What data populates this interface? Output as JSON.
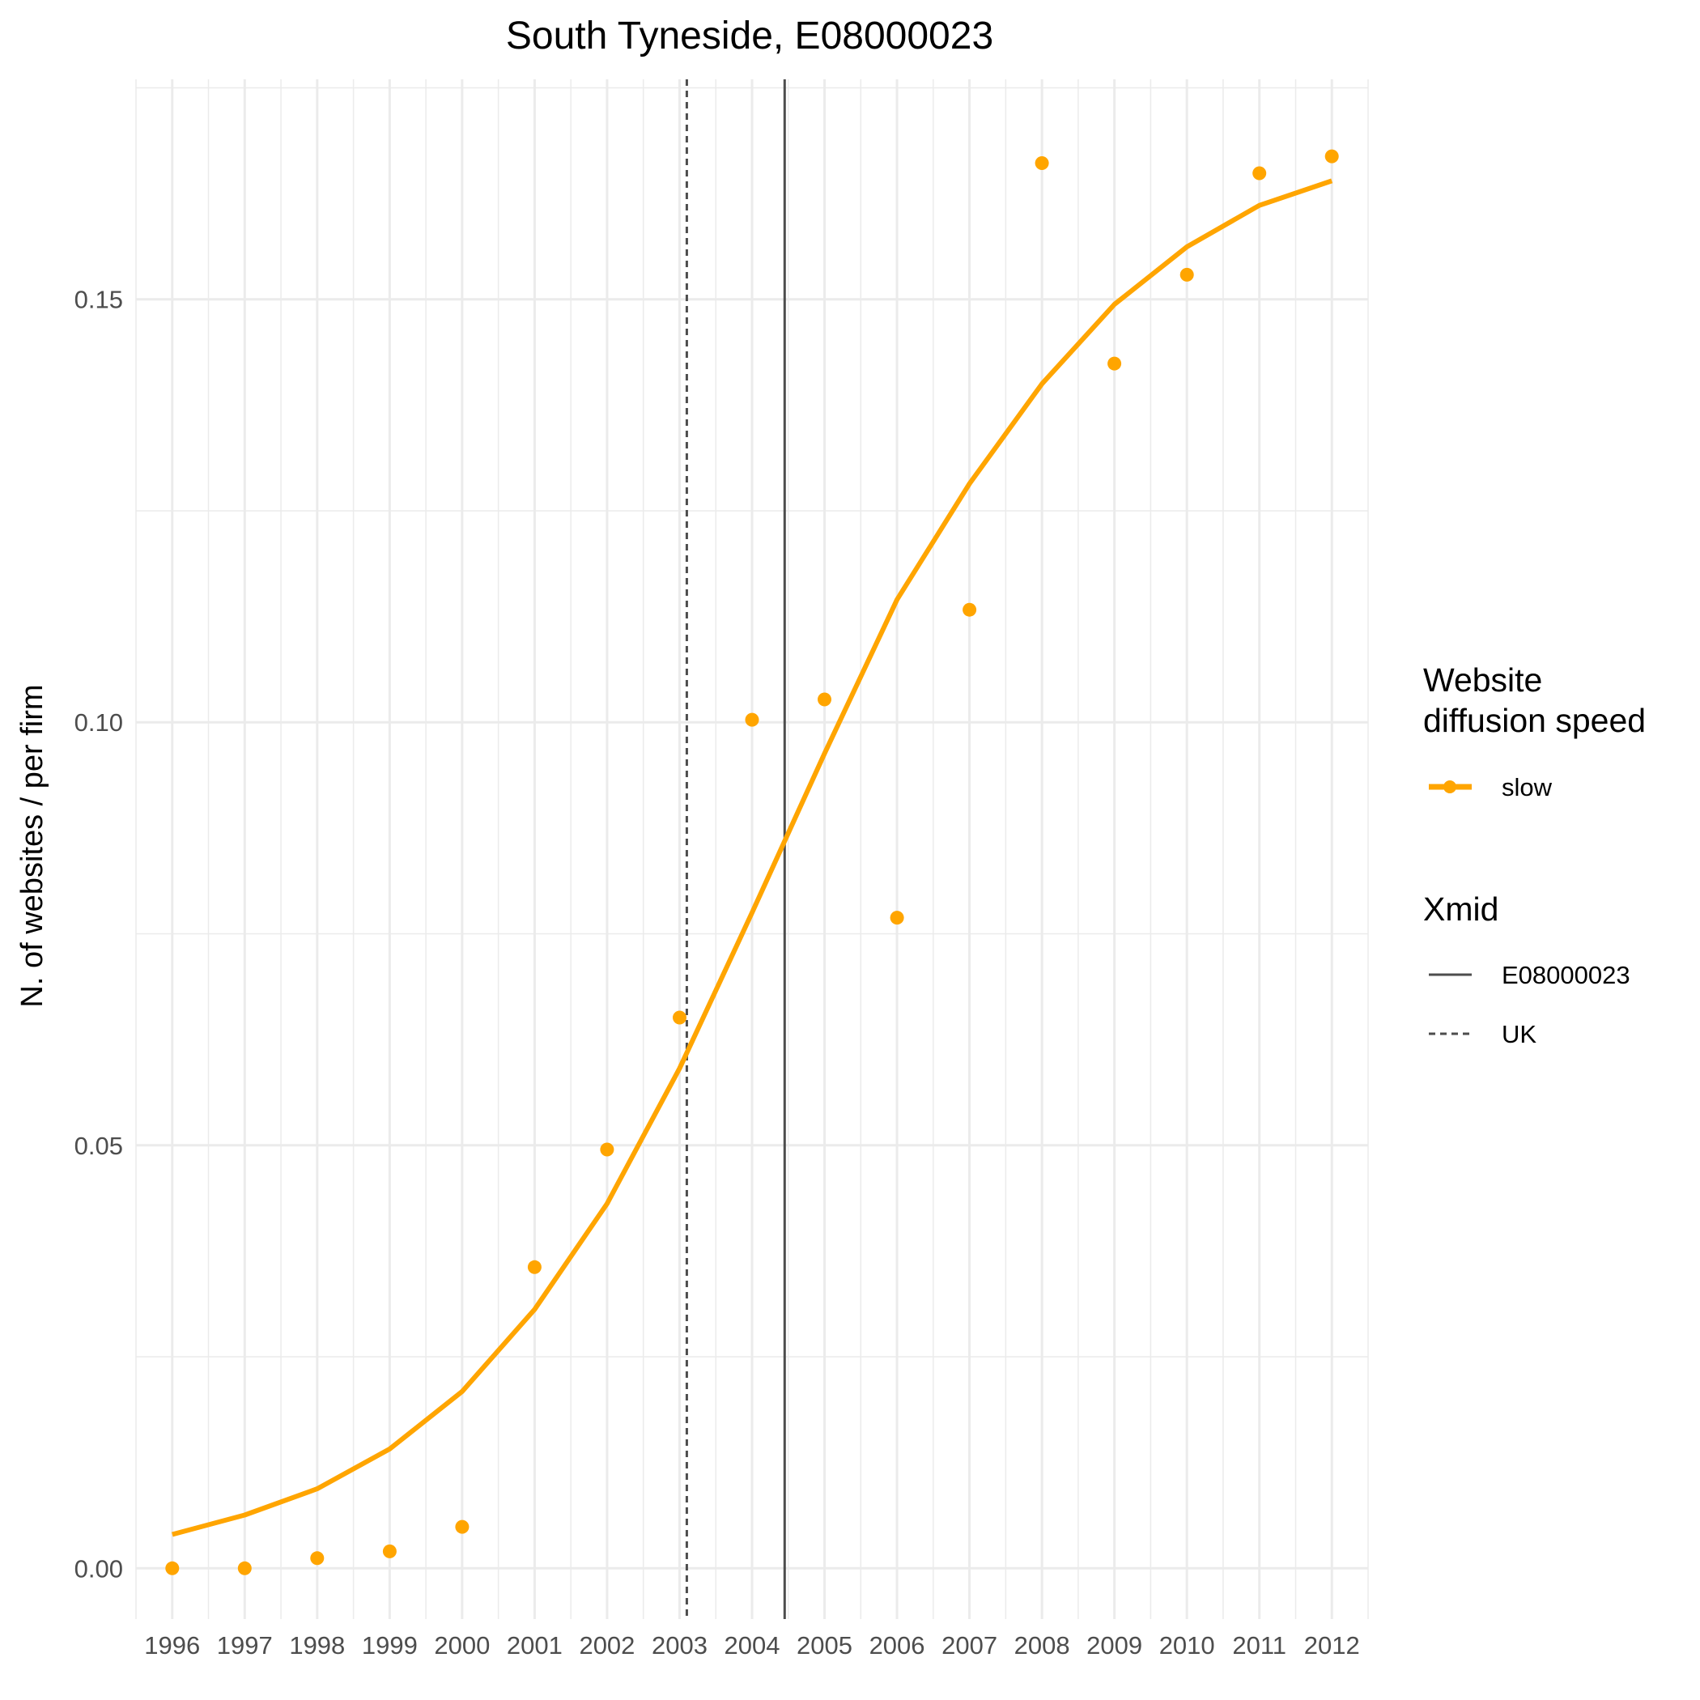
{
  "chart_data": {
    "type": "scatter",
    "title": "South Tyneside, E08000023",
    "xlabel": "",
    "ylabel": "N. of websites / per firm",
    "x_ticks": [
      "1996",
      "1997",
      "1998",
      "1999",
      "2000",
      "2001",
      "2002",
      "2003",
      "2004",
      "2005",
      "2006",
      "2007",
      "2008",
      "2009",
      "2010",
      "2011",
      "2012"
    ],
    "y_ticks": [
      "0.00",
      "0.05",
      "0.10",
      "0.15"
    ],
    "xlim": [
      1995.5,
      2012.5
    ],
    "ylim": [
      -0.006,
      0.176
    ],
    "grid": true,
    "legend_position": "right",
    "series": [
      {
        "name": "slow",
        "color": "#FFA500",
        "points_x": [
          1996,
          1997,
          1998,
          1999,
          2000,
          2001,
          2002,
          2003,
          2004,
          2005,
          2006,
          2007,
          2008,
          2009,
          2010,
          2011,
          2012
        ],
        "points_y": [
          0.0,
          0.0,
          0.0012,
          0.002,
          0.0049,
          0.0356,
          0.0495,
          0.0651,
          0.1003,
          0.1027,
          0.0769,
          0.1133,
          0.1661,
          0.1424,
          0.1529,
          0.1649,
          0.1669
        ],
        "fit_x": [
          1996,
          1997,
          1998,
          1999,
          2000,
          2001,
          2002,
          2003,
          2004,
          2005,
          2006,
          2007,
          2008,
          2009,
          2010,
          2011,
          2012
        ],
        "fit_y": [
          0.004,
          0.0063,
          0.0094,
          0.0141,
          0.0209,
          0.0306,
          0.0431,
          0.0591,
          0.0775,
          0.0963,
          0.1145,
          0.1282,
          0.14,
          0.1494,
          0.1562,
          0.1611,
          0.164
        ]
      }
    ],
    "vlines": [
      {
        "label": "E08000023",
        "x": 2004.45,
        "style": "solid",
        "color": "#4d4d4d"
      },
      {
        "label": "UK",
        "x": 2003.1,
        "style": "dashed",
        "color": "#4d4d4d"
      }
    ],
    "legend": {
      "speed_title_line1": "Website",
      "speed_title_line2": "diffusion speed",
      "speed_item": "slow",
      "xmid_title": "Xmid",
      "xmid_items": [
        "E08000023",
        "UK"
      ]
    }
  }
}
